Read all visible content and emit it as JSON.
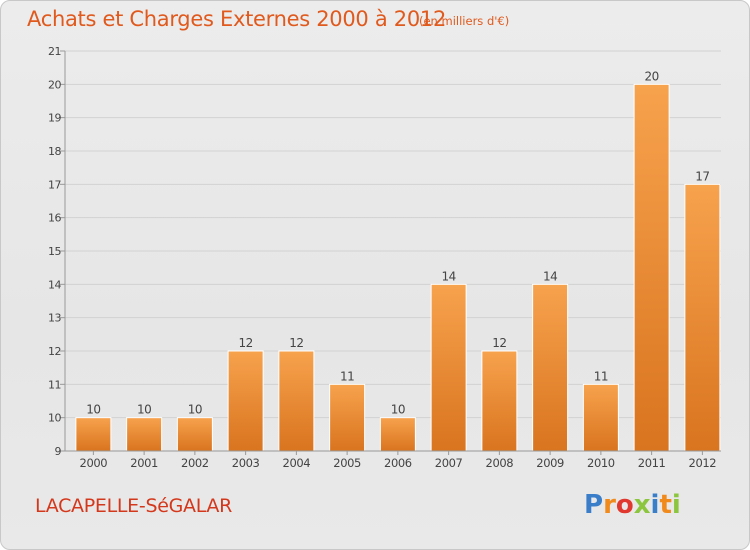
{
  "title": "Achats et Charges Externes 2000 à 2012",
  "subtitle": "(en milliers d'€)",
  "commune": "LACAPELLE-SéGALAR",
  "logo_text": "Proxiti",
  "colors": {
    "title": "#e05a1e",
    "commune": "#d4381c",
    "bar_light": "#f7a24d",
    "bar_dark": "#d9741f",
    "logo_letters": [
      "#3a7dc9",
      "#f08a1c",
      "#e0382e",
      "#8cc63f",
      "#3a7dc9",
      "#f08a1c",
      "#8cc63f"
    ]
  },
  "chart_data": {
    "type": "bar",
    "categories": [
      "2000",
      "2001",
      "2002",
      "2003",
      "2004",
      "2005",
      "2006",
      "2007",
      "2008",
      "2009",
      "2010",
      "2011",
      "2012"
    ],
    "values": [
      10,
      10,
      10,
      12,
      12,
      11,
      10,
      14,
      12,
      14,
      11,
      20,
      17
    ],
    "ylim": [
      9,
      21
    ],
    "yticks": [
      9,
      10,
      11,
      12,
      13,
      14,
      15,
      16,
      17,
      18,
      19,
      20,
      21
    ],
    "grid": true,
    "data_labels": true
  }
}
